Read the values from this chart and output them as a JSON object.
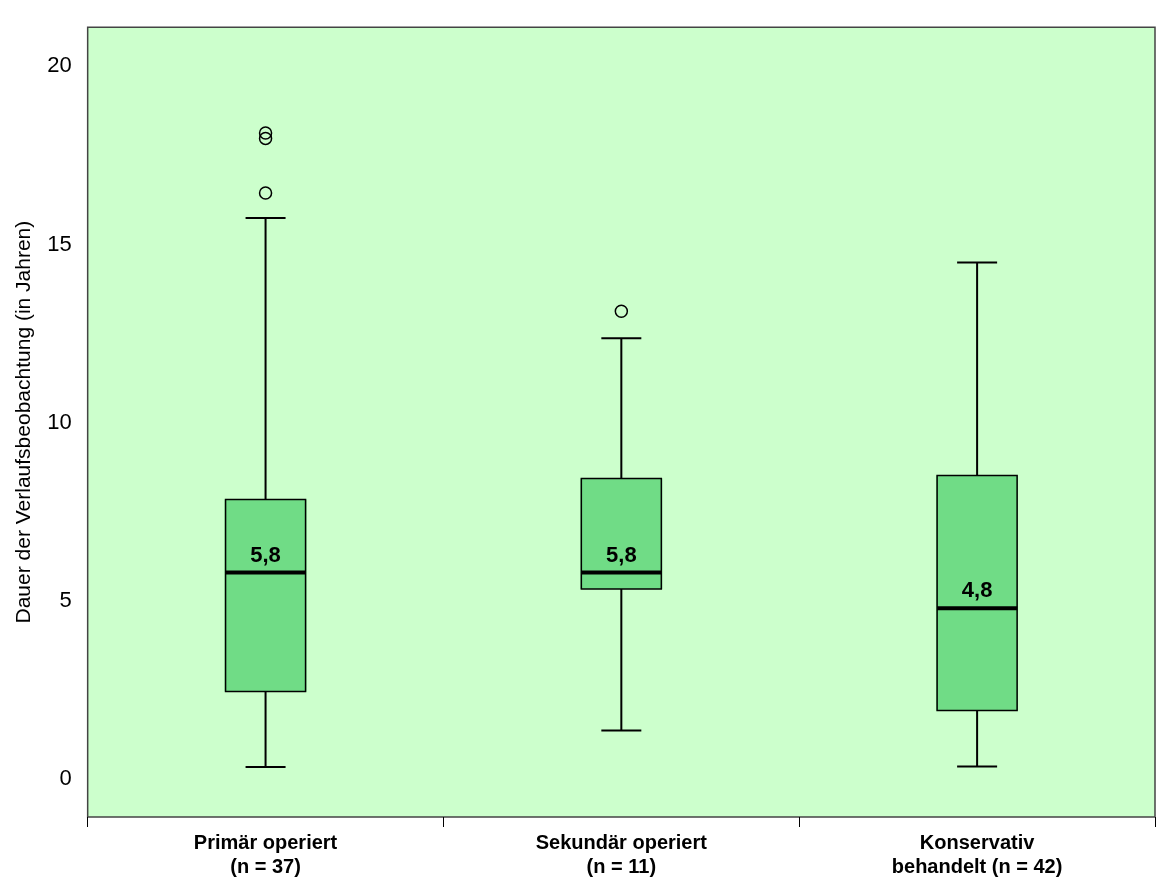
{
  "chart_data": {
    "type": "box",
    "ylabel": "Dauer der Verlaufsbeobachtung (in Jahren)",
    "categories": [
      "Primär operiert\n(n = 37)",
      "Sekundär operiert\n(n = 11)",
      "Konservativ\nbehandelt (n = 42)"
    ],
    "boxes": [
      {
        "low": 0.34,
        "q1": 2.46,
        "median": 5.8,
        "q3": 7.85,
        "high": 15.75,
        "outliers": [
          16.45,
          17.98,
          18.13
        ]
      },
      {
        "low": 1.37,
        "q1": 5.34,
        "median": 5.8,
        "q3": 8.44,
        "high": 12.37,
        "outliers": [
          13.13
        ]
      },
      {
        "low": 0.36,
        "q1": 1.93,
        "median": 4.8,
        "q3": 8.52,
        "high": 14.5
      }
    ],
    "value_labels": [
      "5,8",
      "5,8",
      "4,8"
    ],
    "color": "#70dc86",
    "ylim": [
      -1.06,
      21.1
    ],
    "yticks": [
      0,
      5,
      10,
      15,
      20
    ]
  }
}
